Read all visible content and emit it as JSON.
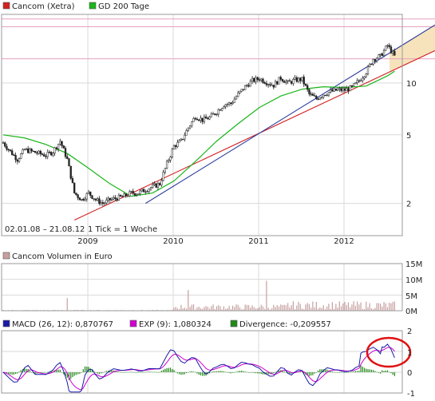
{
  "chart_data": [
    {
      "type": "candlestick",
      "legend": [
        {
          "label": "Cancom (Xetra)",
          "color": "#d32020"
        },
        {
          "label": "GD 200 Tage",
          "color": "#19b519"
        }
      ],
      "date_range_label": "02.01.08 – 21.08.12",
      "tick_label": "1 Tick = 1 Woche",
      "x_tick_labels": [
        "2009",
        "2010",
        "2011",
        "2012"
      ],
      "y_scale": "log",
      "y_ticks": [
        2,
        5,
        10
      ],
      "ylim": [
        1.3,
        25
      ],
      "price_series": {
        "name": "Cancom (Xetra)",
        "points": [
          [
            "2008-01",
            4.5
          ],
          [
            "2008-02",
            4.0
          ],
          [
            "2008-03",
            3.6
          ],
          [
            "2008-04",
            4.1
          ],
          [
            "2008-05",
            4.0
          ],
          [
            "2008-06",
            3.9
          ],
          [
            "2008-07",
            3.8
          ],
          [
            "2008-08",
            4.0
          ],
          [
            "2008-09",
            4.6
          ],
          [
            "2008-10",
            3.6
          ],
          [
            "2008-11",
            2.3
          ],
          [
            "2008-12",
            2.1
          ],
          [
            "2009-01",
            2.3
          ],
          [
            "2009-02",
            2.1
          ],
          [
            "2009-03",
            2.0
          ],
          [
            "2009-04",
            2.1
          ],
          [
            "2009-05",
            2.15
          ],
          [
            "2009-06",
            2.2
          ],
          [
            "2009-07",
            2.3
          ],
          [
            "2009-08",
            2.3
          ],
          [
            "2009-09",
            2.4
          ],
          [
            "2009-10",
            2.5
          ],
          [
            "2009-11",
            2.6
          ],
          [
            "2009-12",
            3.4
          ],
          [
            "2010-01",
            4.3
          ],
          [
            "2010-02",
            4.6
          ],
          [
            "2010-03",
            5.5
          ],
          [
            "2010-04",
            6.4
          ],
          [
            "2010-05",
            6.1
          ],
          [
            "2010-06",
            6.3
          ],
          [
            "2010-07",
            6.8
          ],
          [
            "2010-08",
            7.5
          ],
          [
            "2010-09",
            7.6
          ],
          [
            "2010-10",
            8.6
          ],
          [
            "2010-11",
            9.5
          ],
          [
            "2010-12",
            10.3
          ],
          [
            "2011-01",
            10.6
          ],
          [
            "2011-02",
            10.1
          ],
          [
            "2011-03",
            9.7
          ],
          [
            "2011-04",
            10.7
          ],
          [
            "2011-05",
            10.0
          ],
          [
            "2011-06",
            10.4
          ],
          [
            "2011-07",
            10.5
          ],
          [
            "2011-08",
            8.6
          ],
          [
            "2011-09",
            8.1
          ],
          [
            "2011-10",
            8.6
          ],
          [
            "2011-11",
            8.9
          ],
          [
            "2011-12",
            9.1
          ],
          [
            "2012-01",
            9.1
          ],
          [
            "2012-02",
            9.4
          ],
          [
            "2012-03",
            10.3
          ],
          [
            "2012-04",
            11.6
          ],
          [
            "2012-05",
            13.8
          ],
          [
            "2012-06",
            14.3
          ],
          [
            "2012-07",
            16.5
          ],
          [
            "2012-08",
            14.3
          ]
        ]
      },
      "gd200_series": {
        "name": "GD 200 Tage",
        "points": [
          [
            "2008-01",
            5.0
          ],
          [
            "2008-04",
            4.8
          ],
          [
            "2008-07",
            4.4
          ],
          [
            "2008-10",
            3.9
          ],
          [
            "2009-01",
            3.2
          ],
          [
            "2009-04",
            2.6
          ],
          [
            "2009-07",
            2.2
          ],
          [
            "2009-10",
            2.3
          ],
          [
            "2010-01",
            2.7
          ],
          [
            "2010-04",
            3.5
          ],
          [
            "2010-07",
            4.6
          ],
          [
            "2010-10",
            5.8
          ],
          [
            "2011-01",
            7.2
          ],
          [
            "2011-04",
            8.4
          ],
          [
            "2011-07",
            9.2
          ],
          [
            "2011-10",
            9.5
          ],
          [
            "2012-01",
            9.4
          ],
          [
            "2012-04",
            9.6
          ],
          [
            "2012-07",
            11.0
          ],
          [
            "2012-08",
            11.7
          ]
        ]
      },
      "trendlines": [
        {
          "color": "#d22020",
          "from": [
            "2008-11",
            1.6
          ],
          "to": [
            "2012-09",
            12.5
          ]
        },
        {
          "color": "#2c3c9c",
          "from": [
            "2009-09",
            2.0
          ],
          "to": [
            "2012-09",
            16.5
          ]
        }
      ],
      "resistance_levels": [
        23.5,
        21.2,
        13.8
      ]
    },
    {
      "type": "bar",
      "legend": [
        {
          "label": "Cancom Volumen in Euro",
          "color": "#c8a0a0"
        }
      ],
      "y_ticks_labels": [
        "15M",
        "10M",
        "5M",
        "0M"
      ],
      "ylim": [
        0,
        15
      ],
      "unit": "M",
      "highlight_spikes": [
        [
          "2008-10",
          4.0
        ],
        [
          "2010-03",
          6.6
        ],
        [
          "2011-02",
          9.5
        ]
      ]
    },
    {
      "type": "line",
      "legend": [
        {
          "label": "MACD (26, 12): 0,870767",
          "color": "#1a1aa8"
        },
        {
          "label": "EXP (9): 1,080324",
          "color": "#d000d0"
        },
        {
          "label": "Divergence: -0,209557",
          "color": "#238a1a"
        }
      ],
      "y_ticks": [
        2,
        1,
        0,
        -1
      ],
      "ylim": [
        -1,
        2
      ],
      "annotation": "red-circle"
    }
  ]
}
